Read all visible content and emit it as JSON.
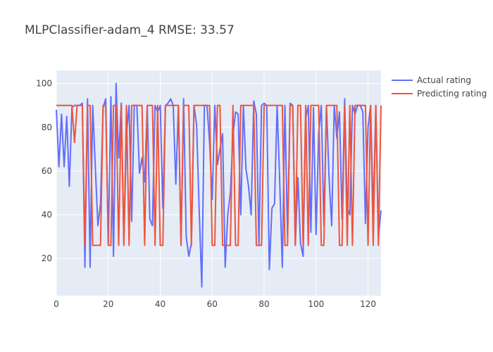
{
  "chart_data": {
    "type": "line",
    "title": "MLPClassifier-adam_4 RMSE: 33.57",
    "xlabel": "",
    "ylabel": "",
    "xlim": [
      0,
      125
    ],
    "ylim": [
      3,
      106
    ],
    "x_ticks": [
      0,
      20,
      40,
      60,
      80,
      100,
      120
    ],
    "y_ticks": [
      20,
      40,
      60,
      80,
      100
    ],
    "grid": true,
    "legend_position": "top-right",
    "colors": {
      "plot_bg": "#e5ecf6",
      "grid": "#ffffff",
      "actual": "#636efa",
      "predicted": "#ef553b"
    },
    "series": [
      {
        "name": "Actual rating",
        "color": "#636efa",
        "x": [
          0,
          1,
          2,
          3,
          4,
          5,
          6,
          7,
          8,
          9,
          10,
          11,
          12,
          13,
          14,
          15,
          16,
          17,
          18,
          19,
          20,
          21,
          22,
          23,
          24,
          25,
          26,
          27,
          28,
          29,
          30,
          31,
          32,
          33,
          34,
          35,
          36,
          37,
          38,
          39,
          40,
          41,
          42,
          43,
          44,
          45,
          46,
          47,
          48,
          49,
          50,
          51,
          52,
          53,
          54,
          55,
          56,
          57,
          58,
          59,
          60,
          61,
          62,
          63,
          64,
          65,
          66,
          67,
          68,
          69,
          70,
          71,
          72,
          73,
          74,
          75,
          76,
          77,
          78,
          79,
          80,
          81,
          82,
          83,
          84,
          85,
          86,
          87,
          88,
          89,
          90,
          91,
          92,
          93,
          94,
          95,
          96,
          97,
          98,
          99,
          100,
          101,
          102,
          103,
          104,
          105,
          106,
          107,
          108,
          109,
          110,
          111,
          112,
          113,
          114,
          115,
          116,
          117,
          118,
          119,
          120,
          121,
          122,
          123,
          124,
          125
        ],
        "values": [
          88,
          62,
          86,
          62,
          85,
          53,
          89,
          90,
          90,
          90,
          91,
          16,
          93,
          16,
          90,
          62,
          35,
          45,
          89,
          93,
          27,
          94,
          21,
          100,
          66,
          91,
          27,
          77,
          90,
          37,
          90,
          90,
          59,
          66,
          55,
          90,
          38,
          35,
          90,
          87,
          90,
          43,
          90,
          91,
          93,
          90,
          54,
          90,
          26,
          93,
          30,
          21,
          27,
          90,
          81,
          42,
          7,
          90,
          90,
          73,
          47,
          90,
          63,
          70,
          77,
          16,
          40,
          50,
          76,
          87,
          86,
          40,
          90,
          61,
          53,
          40,
          92,
          86,
          26,
          90,
          91,
          90,
          15,
          43,
          45,
          90,
          55,
          16,
          90,
          30,
          91,
          90,
          26,
          57,
          27,
          21,
          84,
          90,
          32,
          89,
          31,
          77,
          90,
          35,
          90,
          57,
          35,
          90,
          75,
          87,
          38,
          93,
          43,
          40,
          90,
          86,
          90,
          90,
          87,
          36,
          80,
          90,
          40,
          90,
          30,
          42
        ]
      },
      {
        "name": "Predicting rating",
        "color": "#ef553b",
        "x": [
          0,
          1,
          2,
          3,
          4,
          5,
          6,
          7,
          8,
          9,
          10,
          11,
          12,
          13,
          14,
          15,
          16,
          17,
          18,
          19,
          20,
          21,
          22,
          23,
          24,
          25,
          26,
          27,
          28,
          29,
          30,
          31,
          32,
          33,
          34,
          35,
          36,
          37,
          38,
          39,
          40,
          41,
          42,
          43,
          44,
          45,
          46,
          47,
          48,
          49,
          50,
          51,
          52,
          53,
          54,
          55,
          56,
          57,
          58,
          59,
          60,
          61,
          62,
          63,
          64,
          65,
          66,
          67,
          68,
          69,
          70,
          71,
          72,
          73,
          74,
          75,
          76,
          77,
          78,
          79,
          80,
          81,
          82,
          83,
          84,
          85,
          86,
          87,
          88,
          89,
          90,
          91,
          92,
          93,
          94,
          95,
          96,
          97,
          98,
          99,
          100,
          101,
          102,
          103,
          104,
          105,
          106,
          107,
          108,
          109,
          110,
          111,
          112,
          113,
          114,
          115,
          116,
          117,
          118,
          119,
          120,
          121,
          122,
          123,
          124,
          125
        ],
        "values": [
          90,
          90,
          90,
          90,
          90,
          90,
          90,
          73,
          90,
          90,
          90,
          26,
          90,
          90,
          26,
          26,
          26,
          26,
          90,
          90,
          26,
          26,
          90,
          90,
          26,
          90,
          26,
          90,
          26,
          90,
          90,
          90,
          90,
          90,
          26,
          90,
          90,
          90,
          26,
          90,
          26,
          26,
          90,
          90,
          90,
          90,
          90,
          90,
          26,
          90,
          90,
          90,
          26,
          90,
          90,
          90,
          90,
          90,
          90,
          90,
          26,
          26,
          90,
          90,
          26,
          26,
          26,
          26,
          90,
          26,
          26,
          90,
          90,
          90,
          90,
          90,
          90,
          26,
          26,
          26,
          90,
          90,
          90,
          90,
          90,
          90,
          90,
          90,
          26,
          26,
          90,
          90,
          26,
          90,
          90,
          26,
          90,
          26,
          90,
          90,
          90,
          90,
          26,
          26,
          90,
          90,
          90,
          90,
          90,
          26,
          26,
          90,
          26,
          90,
          26,
          90,
          90,
          90,
          90,
          90,
          26,
          90,
          26,
          90,
          26,
          90
        ]
      }
    ]
  }
}
